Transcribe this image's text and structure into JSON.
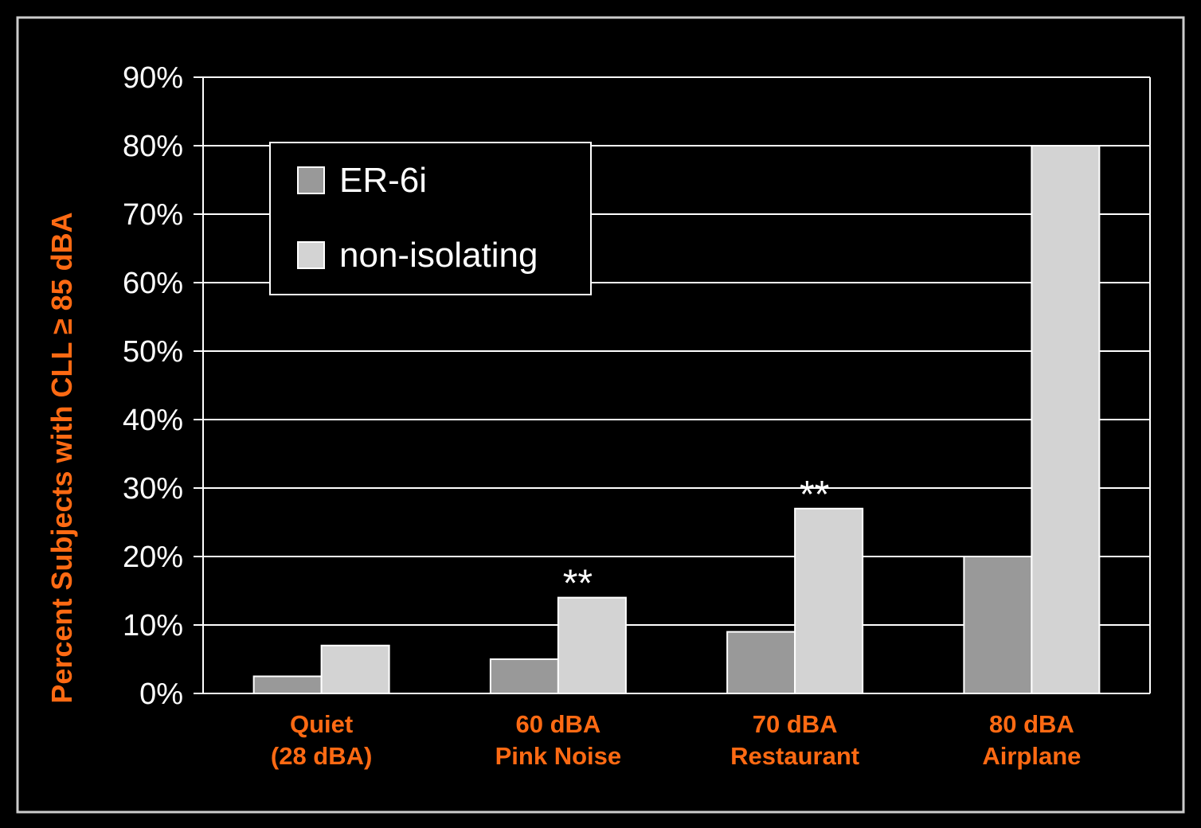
{
  "chart_data": {
    "type": "bar",
    "title": "",
    "ylabel": "Percent Subjects with CLL ≥ 85 dBA",
    "xlabel": "",
    "ylim": [
      0,
      90
    ],
    "y_ticks": [
      0,
      10,
      20,
      30,
      40,
      50,
      60,
      70,
      80,
      90
    ],
    "y_tick_suffix": "%",
    "grid": true,
    "legend_position": "top-left",
    "categories": [
      [
        "Quiet",
        "(28 dBA)"
      ],
      [
        "60 dBA",
        "Pink Noise"
      ],
      [
        "70 dBA",
        "Restaurant"
      ],
      [
        "80 dBA",
        "Airplane"
      ]
    ],
    "series": [
      {
        "name": "ER-6i",
        "values": [
          2.5,
          5,
          9,
          20
        ],
        "color": "#999999"
      },
      {
        "name": "non-isolating",
        "values": [
          7,
          14,
          27,
          80
        ],
        "color": "#d3d3d3"
      }
    ],
    "annotations": [
      {
        "category_index": 1,
        "text": "**"
      },
      {
        "category_index": 2,
        "text": "**"
      }
    ],
    "colors": {
      "background": "#000000",
      "frame": "#cccccc",
      "axis_text": "#ffffff",
      "label_accent": "#ff6a13",
      "bar_stroke": "#ffffff",
      "grid": "#ffffff"
    }
  }
}
